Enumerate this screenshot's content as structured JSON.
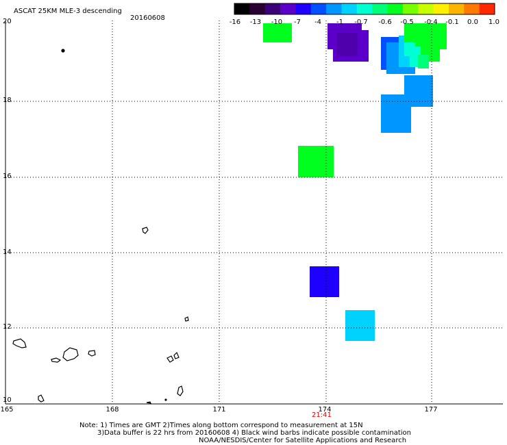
{
  "header": {
    "title": "ASCAT 25KM MLE-3 descending",
    "date": "20160608"
  },
  "colorbar": {
    "labels": [
      "-16",
      "-13",
      "-10",
      "-7",
      "-4",
      "-1",
      "-0.7",
      "-0.6",
      "-0.5",
      "-0.4",
      "-0.1",
      "0.0",
      "1.0"
    ],
    "colors": [
      "#000000",
      "#2a0033",
      "#3c0078",
      "#5a00c8",
      "#1e00ff",
      "#0050ff",
      "#0096ff",
      "#00d2ff",
      "#00ffd2",
      "#00ff78",
      "#00ff1e",
      "#78ff00",
      "#c8ff00",
      "#fff000",
      "#ffb400",
      "#ff7800",
      "#ff2800"
    ]
  },
  "map": {
    "lat_labels": [
      "20",
      "18",
      "16",
      "14",
      "12",
      "10"
    ],
    "lon_labels": [
      "165",
      "168",
      "171",
      "174",
      "177"
    ],
    "time_label": "21:41"
  },
  "notes": {
    "line1": "Note: 1) Times are GMT 2)Times along bottom correspond to measurement at 15N",
    "line2": "3)Data buffer is 22 hrs from 20160608 4) Black wind barbs indicate possible contamination",
    "line3": "NOAA/NESDIS/Center for Satellite Applications and Research"
  }
}
